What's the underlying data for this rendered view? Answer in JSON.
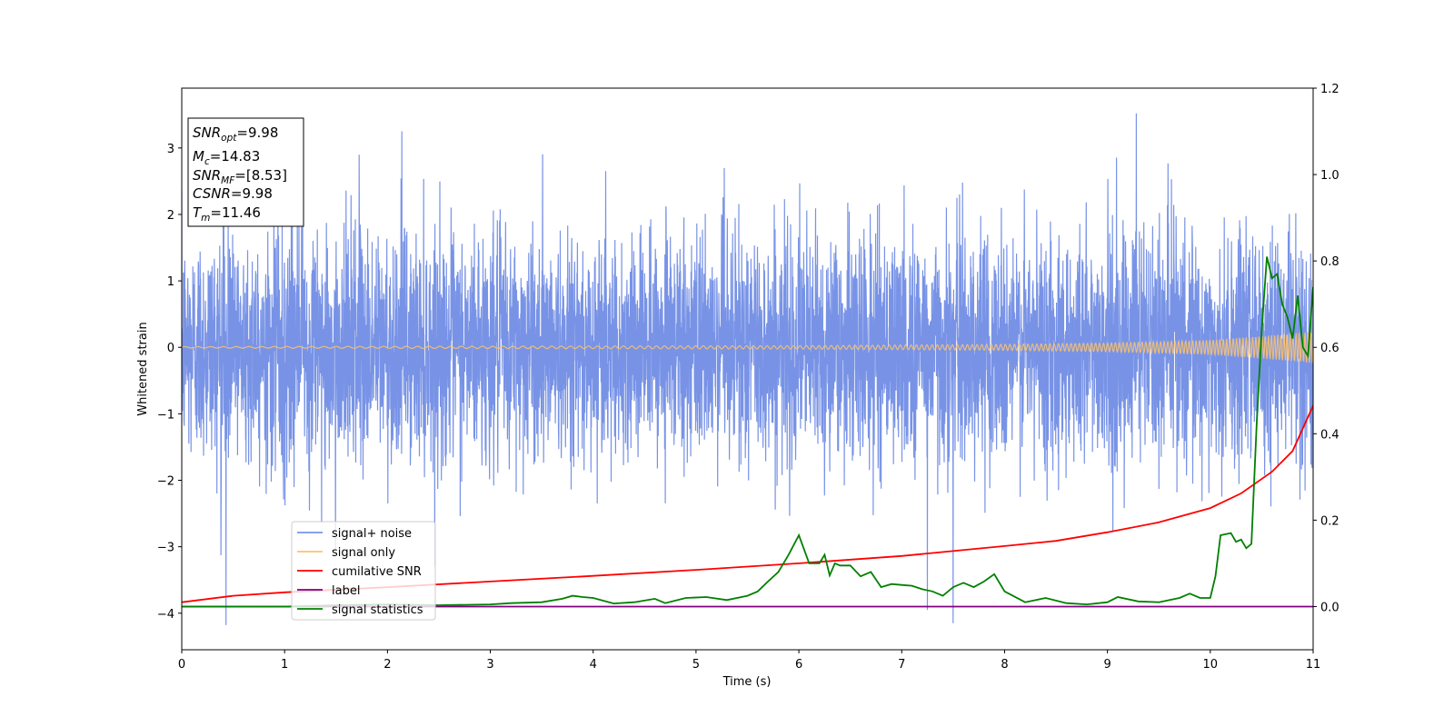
{
  "chart_data": {
    "type": "line",
    "xlabel": "Time (s)",
    "ylabel_left": "Whitened strain",
    "xlim": [
      0,
      11
    ],
    "ylim_left": [
      -4.55,
      3.9
    ],
    "ylim_right": [
      -0.1,
      1.2
    ],
    "x_ticks": [
      "0",
      "1",
      "2",
      "3",
      "4",
      "5",
      "6",
      "7",
      "8",
      "9",
      "10",
      "11"
    ],
    "y_ticks_left": [
      "−4",
      "−3",
      "−2",
      "−1",
      "0",
      "1",
      "2",
      "3"
    ],
    "y_ticks_right": [
      "0.0",
      "0.2",
      "0.4",
      "0.6",
      "0.8",
      "1.0",
      "1.2"
    ],
    "grid": false,
    "legend_placement": "lower-left",
    "series": [
      {
        "name": "signal+ noise",
        "axis": "left",
        "color": "#7893e6",
        "description_kind": "whitened noise, approx. gaussian, sigma ~0.85, peaks to ~3.5 / -4.2",
        "amplitude_sigma": 0.85,
        "notable_peaks": [
          [
            0.43,
            -4.18
          ],
          [
            2.14,
            3.25
          ],
          [
            7.25,
            -3.95
          ],
          [
            7.5,
            -4.15
          ],
          [
            9.28,
            3.52
          ]
        ]
      },
      {
        "name": "signal only",
        "axis": "left",
        "color": "#ffc36a",
        "envelope": {
          "x": [
            0,
            2,
            4,
            6,
            8,
            9,
            10,
            10.5,
            11
          ],
          "amplitude": [
            0.01,
            0.015,
            0.02,
            0.025,
            0.045,
            0.065,
            0.11,
            0.17,
            0.24
          ]
        }
      },
      {
        "name": "cumilative SNR",
        "axis": "right",
        "color": "#ff0000",
        "x": [
          0,
          0.5,
          1,
          2,
          3,
          4,
          5,
          6,
          7,
          8,
          8.5,
          9,
          9.5,
          10,
          10.3,
          10.6,
          10.8,
          11
        ],
        "values": [
          0.01,
          0.025,
          0.033,
          0.045,
          0.058,
          0.071,
          0.085,
          0.1,
          0.117,
          0.14,
          0.152,
          0.172,
          0.195,
          0.228,
          0.262,
          0.312,
          0.36,
          0.465
        ]
      },
      {
        "name": "label",
        "axis": "right",
        "color": "#800080",
        "x": [
          0,
          11
        ],
        "values": [
          0.0,
          0.0
        ]
      },
      {
        "name": "signal statistics",
        "axis": "right",
        "color": "#008000",
        "x": [
          0,
          0.5,
          1,
          1.5,
          2,
          2.5,
          3,
          3.2,
          3.5,
          3.7,
          3.8,
          3.9,
          4.0,
          4.2,
          4.4,
          4.6,
          4.7,
          4.9,
          5.1,
          5.3,
          5.5,
          5.6,
          5.7,
          5.8,
          5.9,
          6.0,
          6.1,
          6.2,
          6.25,
          6.3,
          6.35,
          6.4,
          6.5,
          6.6,
          6.7,
          6.8,
          6.9,
          7.0,
          7.1,
          7.2,
          7.3,
          7.4,
          7.5,
          7.6,
          7.7,
          7.8,
          7.9,
          8.0,
          8.2,
          8.4,
          8.6,
          8.8,
          9.0,
          9.1,
          9.3,
          9.5,
          9.7,
          9.8,
          9.9,
          10.0,
          10.05,
          10.1,
          10.2,
          10.25,
          10.3,
          10.35,
          10.4,
          10.45,
          10.5,
          10.55,
          10.6,
          10.65,
          10.7,
          10.75,
          10.8,
          10.85,
          10.9,
          10.95,
          11.0
        ],
        "values": [
          0.0,
          0.0,
          0.0,
          0.003,
          0.005,
          0.003,
          0.005,
          0.008,
          0.01,
          0.018,
          0.025,
          0.022,
          0.02,
          0.007,
          0.01,
          0.018,
          0.008,
          0.02,
          0.022,
          0.015,
          0.025,
          0.035,
          0.058,
          0.08,
          0.12,
          0.165,
          0.1,
          0.1,
          0.12,
          0.072,
          0.1,
          0.095,
          0.095,
          0.07,
          0.08,
          0.045,
          0.052,
          0.05,
          0.048,
          0.04,
          0.035,
          0.025,
          0.045,
          0.055,
          0.045,
          0.058,
          0.075,
          0.035,
          0.01,
          0.02,
          0.008,
          0.005,
          0.01,
          0.022,
          0.012,
          0.01,
          0.02,
          0.03,
          0.02,
          0.02,
          0.07,
          0.165,
          0.17,
          0.15,
          0.155,
          0.135,
          0.145,
          0.42,
          0.64,
          0.81,
          0.76,
          0.77,
          0.7,
          0.67,
          0.62,
          0.72,
          0.6,
          0.58,
          0.74
        ]
      }
    ]
  },
  "annotation_box": {
    "snr_opt": {
      "main": "SNR",
      "sub": "opt",
      "value": "=9.98"
    },
    "mc": {
      "main": "M",
      "sub": "c",
      "value": "=14.83"
    },
    "snr_mf": {
      "main": "SNR",
      "sub": "MF",
      "value": "=[8.53]"
    },
    "csnr": {
      "main": "CSNR",
      "value": "=9.98"
    },
    "tm": {
      "main": "T",
      "sub": "m",
      "value": "=11.46"
    }
  }
}
